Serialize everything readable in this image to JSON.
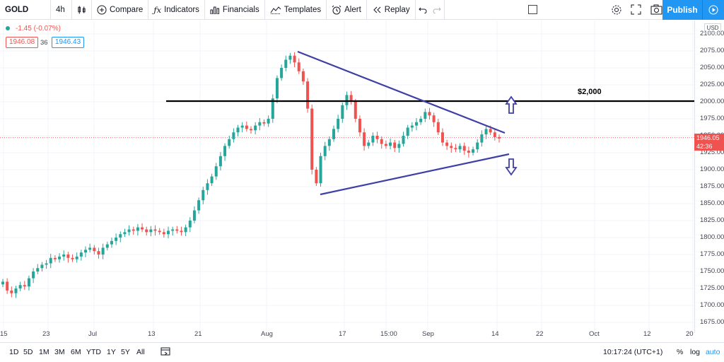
{
  "toolbar": {
    "symbol": "GOLD",
    "interval": "4h",
    "compare": "Compare",
    "indicators": "Indicators",
    "financials": "Financials",
    "templates": "Templates",
    "alert": "Alert",
    "replay": "Replay",
    "publish": "Publish"
  },
  "legend": {
    "change": "-1.45 (-0.07%)",
    "bid": "1946.08",
    "spread": "36",
    "ask": "1946.43"
  },
  "price_axis": {
    "currency": "USD",
    "labels": [
      "2100.00",
      "2075.00",
      "2050.00",
      "2025.00",
      "2000.00",
      "1975.00",
      "1950.00",
      "1925.00",
      "1900.00",
      "1875.00",
      "1850.00",
      "1825.00",
      "1800.00",
      "1775.00",
      "1750.00",
      "1725.00",
      "1700.00",
      "1675.00"
    ],
    "last_price": "1946.05",
    "countdown": "42:36"
  },
  "time_axis": {
    "labels": [
      "15",
      "23",
      "Jul",
      "13",
      "21",
      "Aug",
      "17",
      "15:00",
      "Sep",
      "14",
      "22",
      "Oct",
      "12",
      "20"
    ]
  },
  "annotations": {
    "level_label": "$2,000"
  },
  "bottom": {
    "ranges": [
      "1D",
      "5D",
      "1M",
      "3M",
      "6M",
      "YTD",
      "1Y",
      "5Y",
      "All"
    ],
    "clock": "10:17:24 (UTC+1)",
    "percent": "%",
    "log": "log",
    "auto": "auto"
  },
  "colors": {
    "up": "#26a69a",
    "down": "#ef5350",
    "trendline": "#3f3fa6",
    "level": "#000000",
    "accent": "#2196f3"
  },
  "chart_data": {
    "type": "candlestick",
    "series": [
      {
        "close": [
          1735,
          1722,
          1718,
          1725,
          1730,
          1728,
          1740,
          1750,
          1755,
          1760,
          1762,
          1770,
          1768,
          1772,
          1775,
          1770,
          1768,
          1772,
          1778,
          1782,
          1785,
          1780,
          1775,
          1785,
          1790,
          1795,
          1800,
          1805,
          1808,
          1812,
          1810,
          1815,
          1812,
          1808,
          1812,
          1810,
          1808,
          1805,
          1810,
          1812,
          1810,
          1808,
          1815,
          1825,
          1840,
          1855,
          1870,
          1880,
          1890,
          1905,
          1920,
          1935,
          1945,
          1955,
          1962,
          1965,
          1960,
          1958,
          1965,
          1970,
          1968,
          1975,
          2005,
          2035,
          2050,
          2062,
          2068,
          2058,
          2045,
          2030,
          1990,
          1900,
          1880,
          1920,
          1935,
          1945,
          1960,
          1975,
          1995,
          2010,
          2000,
          1975,
          1955,
          1935,
          1940,
          1950,
          1945,
          1938,
          1935,
          1940,
          1932,
          1938,
          1950,
          1962,
          1965,
          1970,
          1975,
          1985,
          1980,
          1970,
          1955,
          1940,
          1935,
          1932,
          1930,
          1935,
          1928,
          1925,
          1930,
          1940,
          1952,
          1960,
          1955,
          1948,
          1946
        ]
      }
    ],
    "ylim": [
      1665,
      2105
    ]
  }
}
